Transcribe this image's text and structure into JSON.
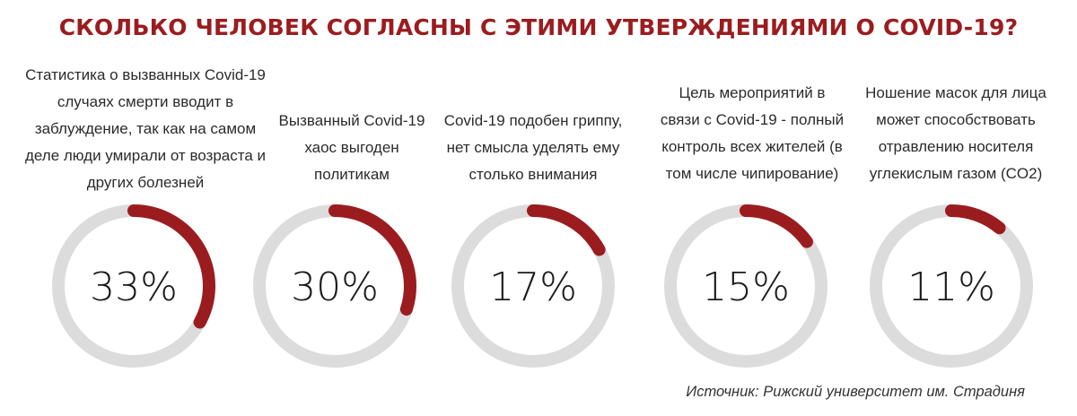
{
  "title": "СКОЛЬКО ЧЕЛОВЕК СОГЛАСНЫ С ЭТИМИ УТВЕРЖДЕНИЯМИ О COVID-19?",
  "source": "Источник: Рижский университет им. Страдиня",
  "colors": {
    "accent": "#9b1c1f",
    "track": "#dcdcdc",
    "title": "#9b1c1f"
  },
  "chart_data": {
    "type": "pie",
    "title": "СКОЛЬКО ЧЕЛОВЕК СОГЛАСНЫ С ЭТИМИ УТВЕРЖДЕНИЯМИ О COVID-19?",
    "categories": [
      "Статистика о вызванных Covid-19 случаях смерти вводит в заблуждение, так как на самом деле люди умирали от возраста и других болезней",
      "Вызванный Covid-19 хаос выгоден политикам",
      "Covid-19 подобен гриппу, нет смысла уделять ему столько внимания",
      "Цель мероприятий в связи с Covid-19 - полный контроль всех жителей (в том числе чипирование)",
      "Ношение масок для лица может способствовать отравлению носителя углекислым газом (CO2)"
    ],
    "values": [
      33,
      30,
      17,
      15,
      11
    ],
    "value_labels": [
      "33%",
      "30%",
      "17%",
      "15%",
      "11%"
    ],
    "label_lines": [
      [
        "Статистика о вызванных Covid-19",
        "случаях смерти вводит в",
        "заблуждение, так как на самом",
        "деле люди умирали от возраста и",
        "других болезней"
      ],
      [
        "Вызванный Covid-19",
        "хаос выгоден",
        "политикам"
      ],
      [
        "Covid-19 подобен гриппу,",
        "нет смысла уделять ему",
        "столько внимания"
      ],
      [
        "Цель мероприятий в",
        "связи с Covid-19 - полный",
        "контроль всех жителей (в",
        "том числе чипирование)"
      ],
      [
        "Ношение масок для лица",
        "может способствовать",
        "отравлению носителя",
        "углекислым газом (CO2)"
      ]
    ]
  }
}
